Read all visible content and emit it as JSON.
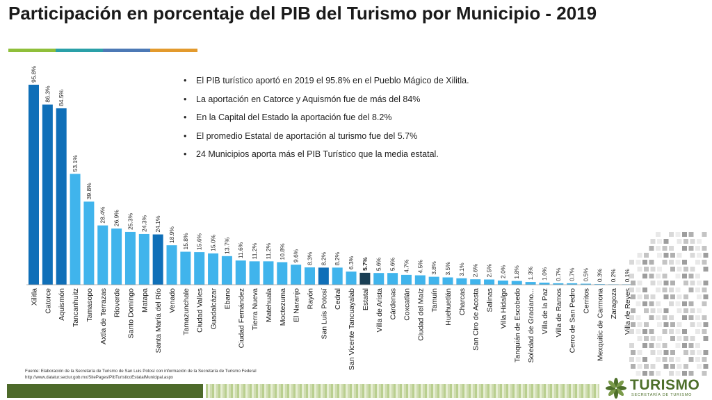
{
  "title": "Participación en porcentaje del PIB del Turismo por Municipio - 2019",
  "colors": {
    "bar_light": "#40b4ec",
    "bar_dark": "#0f6fb8",
    "bar_estatal": "#1a3f55",
    "title_bar": [
      "#8fbf3a",
      "#2aa0a8",
      "#4c79b5",
      "#e39a2d"
    ],
    "footer_dark": "#4d6a2a",
    "logo_green": "#4d6f2a"
  },
  "bullets": [
    "El PIB turístico aportó en 2019 el 95.8% en el Pueblo Mágico de Xilitla.",
    "La aportación en Catorce y Aquismón fue de más del 84%",
    "En la Capital del Estado la aportación fue del 8.2%",
    "El promedio Estatal de aportación al turismo fue del 5.7%",
    "24 Municipios aporta más el PIB Turístico que la media estatal."
  ],
  "source": [
    "Fuente: Elaboración de la Secretaría de Turismo de San Luis Potosí con información de la Secretaría de Turismo Federal",
    "http://www.datatur.sectur.gob.mx/SitePages/PibTuristicoEstatalMunicipal.aspx"
  ],
  "logo": {
    "name": "TURISMO",
    "subtitle": "SECRETARÍA DE TURISMO",
    "icon": "turismo-logo-icon"
  },
  "chart_data": {
    "type": "bar",
    "title": "Participación en porcentaje del PIB del Turismo por Municipio - 2019",
    "xlabel": "",
    "ylabel": "",
    "ylim": [
      0,
      100
    ],
    "grid": false,
    "categories": [
      "Xilitla",
      "Catorce",
      "Aquismón",
      "Tancanhuitz",
      "Tamasopo",
      "Axtla de Terrazas",
      "Rioverde",
      "Santo Domingo",
      "Matapa",
      "Santa María del Río",
      "Venado",
      "Tamazunchale",
      "Ciudad Valles",
      "Guadalcázar",
      "Ebano",
      "Ciudad Fernández",
      "Tierra Nueva",
      "Matehuala",
      "Moctezuma",
      "El Naranjo",
      "Rayón",
      "San Luis Potosí",
      "Cedral",
      "San Vicente Tancuayalab",
      "Estatal",
      "Villa de Arista",
      "Cárdenas",
      "Coxcatlán",
      "Ciudad del Maíz",
      "Tamuín",
      "Huehuetlán",
      "Charcas",
      "San Ciro de Acosta",
      "Salinas",
      "Villa Hidalgo",
      "Tanquián de Escobedo",
      "Soledad de Graciano...",
      "Villa de la Paz",
      "Villa de Ramos",
      "Cerro de San Pedro",
      "Cerritos",
      "Mexquitic de Carmona",
      "Zaragoza",
      "Villa de Reyes"
    ],
    "values": [
      95.8,
      86.3,
      84.5,
      53.1,
      39.8,
      28.4,
      26.9,
      25.3,
      24.3,
      24.1,
      18.9,
      15.8,
      15.6,
      15.0,
      13.7,
      11.6,
      11.2,
      11.2,
      10.8,
      9.6,
      8.3,
      8.2,
      8.2,
      6.3,
      5.7,
      5.6,
      5.6,
      4.7,
      4.5,
      3.8,
      3.5,
      3.1,
      2.6,
      2.5,
      2.0,
      1.8,
      1.3,
      1.0,
      0.7,
      0.7,
      0.5,
      0.3,
      0.2,
      0.1
    ],
    "labels": [
      "95.8%",
      "86.3%",
      "84.5%",
      "53.1%",
      "39.8%",
      "28.4%",
      "26.9%",
      "25.3%",
      "24.3%",
      "24.1%",
      "18.9%",
      "15.8%",
      "15.6%",
      "15.0%",
      "13.7%",
      "11.6%",
      "11.2%",
      "11.2%",
      "10.8%",
      "9.6%",
      "8.3%",
      "8.2%",
      "8.2%",
      "6.3%",
      "5.7%",
      "5.6%",
      "5.6%",
      "4.7%",
      "4.5%",
      "3.8%",
      "3.5%",
      "3.1%",
      "2.6%",
      "2.5%",
      "2.0%",
      "1.8%",
      "1.3%",
      "1.0%",
      "0.7%",
      "0.7%",
      "0.5%",
      "0.3%",
      "0.2%",
      "0.1%"
    ],
    "bar_color_by_index": {
      "0": "dark",
      "1": "dark",
      "2": "dark",
      "9": "dark",
      "21": "dark",
      "24": "estatal"
    },
    "bold_label_index": 24
  }
}
